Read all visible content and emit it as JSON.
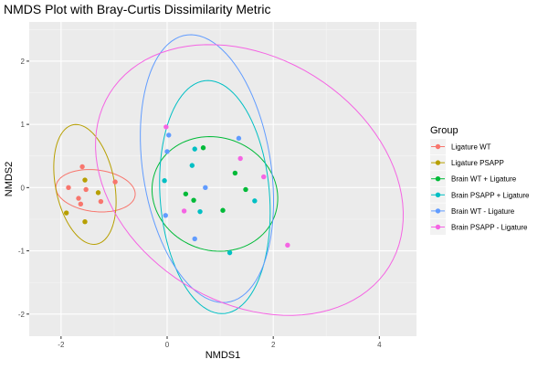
{
  "chart_data": {
    "type": "scatter",
    "title": "NMDS Plot with Bray-Curtis Dissimilarity Metric",
    "xlabel": "NMDS1",
    "ylabel": "NMDS2",
    "xlim": [
      -2.6,
      4.7
    ],
    "ylim": [
      -2.35,
      2.62
    ],
    "x_ticks": [
      -2,
      0,
      2,
      4
    ],
    "y_ticks": [
      -2,
      -1,
      0,
      1,
      2
    ],
    "grid": true,
    "legend_position": "right",
    "legend_title": "Group",
    "series": [
      {
        "name": "Ligature WT",
        "color": "#F8766D",
        "points": [
          [
            -1.86,
            0.0
          ],
          [
            -1.67,
            -0.17
          ],
          [
            -1.6,
            0.33
          ],
          [
            -1.53,
            -0.03
          ],
          [
            -1.63,
            -0.26
          ],
          [
            -1.25,
            -0.22
          ],
          [
            -0.98,
            0.09
          ]
        ],
        "ellipse": {
          "cx": -1.35,
          "cy": -0.05,
          "rx": 0.75,
          "ry": 0.33,
          "angle": -5
        }
      },
      {
        "name": "Ligature PSAPP",
        "color": "#B79F00",
        "points": [
          [
            -1.9,
            -0.4
          ],
          [
            -1.55,
            0.12
          ],
          [
            -1.3,
            -0.08
          ],
          [
            -1.55,
            -0.54
          ]
        ],
        "ellipse": {
          "cx": -1.55,
          "cy": 0.05,
          "rx": 0.55,
          "ry": 0.97,
          "angle": 15
        }
      },
      {
        "name": "Brain WT + Ligature",
        "color": "#00BA38",
        "points": [
          [
            0.35,
            -0.1
          ],
          [
            0.5,
            -0.2
          ],
          [
            0.68,
            0.63
          ],
          [
            1.05,
            -0.36
          ],
          [
            1.28,
            0.23
          ],
          [
            1.48,
            -0.03
          ]
        ],
        "ellipse": {
          "cx": 0.9,
          "cy": -0.1,
          "rx": 1.19,
          "ry": 0.9,
          "angle": -8
        }
      },
      {
        "name": "Brain PSAPP + Ligature",
        "color": "#00BFC4",
        "points": [
          [
            -0.05,
            0.11
          ],
          [
            0.47,
            0.35
          ],
          [
            0.52,
            0.61
          ],
          [
            0.62,
            -0.38
          ],
          [
            1.65,
            -0.21
          ],
          [
            1.18,
            -1.03
          ]
        ],
        "ellipse": {
          "cx": 0.9,
          "cy": -0.15,
          "rx": 1.03,
          "ry": 1.85,
          "angle": 6
        }
      },
      {
        "name": "Brain WT - Ligature",
        "color": "#619CFF",
        "points": [
          [
            0.03,
            0.83
          ],
          [
            0.0,
            0.57
          ],
          [
            -0.03,
            -0.44
          ],
          [
            0.72,
            0.0
          ],
          [
            1.35,
            0.78
          ],
          [
            0.52,
            -0.81
          ]
        ],
        "ellipse": {
          "cx": 0.75,
          "cy": 0.3,
          "rx": 1.2,
          "ry": 2.15,
          "angle": 12
        }
      },
      {
        "name": "Brain PSAPP - Ligature",
        "color": "#F564E3",
        "points": [
          [
            -0.02,
            0.96
          ],
          [
            0.32,
            -0.37
          ],
          [
            1.38,
            0.46
          ],
          [
            1.82,
            0.17
          ],
          [
            2.27,
            -0.91
          ]
        ],
        "ellipse": {
          "cx": 1.55,
          "cy": 0.12,
          "rx": 3.0,
          "ry": 2.0,
          "angle": -20
        }
      }
    ]
  }
}
